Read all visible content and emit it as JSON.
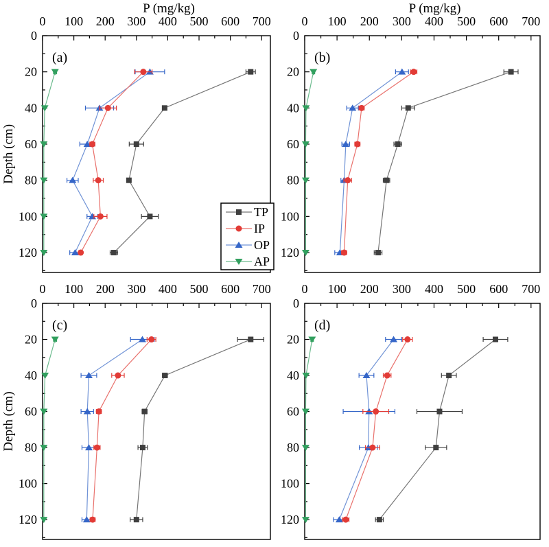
{
  "figure": {
    "x_axis_title": "P (mg/kg)",
    "y_axis_title": "Depth (cm)",
    "x_tick_labels": [
      "0",
      "100",
      "200",
      "300",
      "400",
      "500",
      "600",
      "700"
    ],
    "y_tick_labels": [
      "0",
      "20",
      "40",
      "60",
      "80",
      "100",
      "120"
    ]
  },
  "legend": {
    "items": [
      "TP",
      "IP",
      "OP",
      "AP"
    ]
  },
  "series_styles": {
    "TP": {
      "color": "#3f3f3f",
      "line_color": "#757575",
      "marker": "square"
    },
    "IP": {
      "color": "#e23b36",
      "line_color": "#e9716c",
      "marker": "circle"
    },
    "OP": {
      "color": "#3566c8",
      "line_color": "#7093d6",
      "marker": "triangle-up"
    },
    "AP": {
      "color": "#32a05f",
      "line_color": "#6cbb8e",
      "marker": "triangle-down"
    }
  },
  "chart_data": [
    {
      "id": "a",
      "panel_label": "(a)",
      "type": "line",
      "title": "P (mg/kg)",
      "xlabel": "P (mg/kg)",
      "ylabel": "Depth (cm)",
      "xlim": [
        0,
        728
      ],
      "ylim": [
        0,
        131
      ],
      "x_ticks": [
        0,
        100,
        200,
        300,
        400,
        500,
        600,
        700
      ],
      "y_ticks": [
        0,
        20,
        40,
        60,
        80,
        100,
        120
      ],
      "show_xlabel": true,
      "show_ylabel": true,
      "show_legend": true,
      "depths": [
        20,
        40,
        60,
        80,
        100,
        120
      ],
      "series": [
        {
          "name": "TP",
          "values": [
            665,
            390,
            300,
            276,
            343,
            228
          ],
          "err": [
            15,
            6,
            23,
            6,
            27,
            12
          ]
        },
        {
          "name": "IP",
          "values": [
            322,
            209,
            159,
            178,
            185,
            122
          ],
          "err": [
            28,
            27,
            8,
            16,
            21,
            6
          ]
        },
        {
          "name": "OP",
          "values": [
            343,
            182,
            143,
            96,
            159,
            104
          ],
          "err": [
            47,
            45,
            24,
            18,
            17,
            17
          ]
        },
        {
          "name": "AP",
          "values": [
            40,
            7,
            4,
            4,
            4,
            4
          ],
          "err": [
            5,
            2,
            1,
            1,
            1,
            1
          ]
        }
      ]
    },
    {
      "id": "b",
      "panel_label": "(b)",
      "type": "line",
      "title": "P (mg/kg)",
      "xlabel": "P (mg/kg)",
      "ylabel": "Depth (cm)",
      "xlim": [
        0,
        728
      ],
      "ylim": [
        0,
        131
      ],
      "x_ticks": [
        0,
        100,
        200,
        300,
        400,
        500,
        600,
        700
      ],
      "y_ticks": [
        0,
        20,
        40,
        60,
        80,
        100,
        120
      ],
      "show_xlabel": true,
      "show_ylabel": false,
      "show_legend": false,
      "depths": [
        20,
        40,
        60,
        80,
        120
      ],
      "series": [
        {
          "name": "TP",
          "values": [
            638,
            320,
            288,
            253,
            227
          ],
          "err": [
            22,
            20,
            12,
            10,
            12
          ]
        },
        {
          "name": "IP",
          "values": [
            337,
            176,
            163,
            133,
            122
          ],
          "err": [
            10,
            8,
            8,
            12,
            8
          ]
        },
        {
          "name": "OP",
          "values": [
            301,
            148,
            127,
            122,
            109
          ],
          "err": [
            20,
            18,
            12,
            10,
            16
          ]
        },
        {
          "name": "AP",
          "values": [
            27,
            4,
            3,
            3,
            3
          ],
          "err": [
            4,
            1,
            1,
            1,
            1
          ]
        }
      ]
    },
    {
      "id": "c",
      "panel_label": "(c)",
      "type": "line",
      "title": "",
      "xlabel": "P (mg/kg)",
      "ylabel": "Depth (cm)",
      "xlim": [
        0,
        728
      ],
      "ylim": [
        0,
        131
      ],
      "x_ticks": [
        0,
        100,
        200,
        300,
        400,
        500,
        600,
        700
      ],
      "y_ticks": [
        0,
        20,
        40,
        60,
        80,
        100,
        120
      ],
      "show_xlabel": false,
      "show_ylabel": true,
      "show_legend": false,
      "depths": [
        20,
        40,
        60,
        80,
        120
      ],
      "series": [
        {
          "name": "TP",
          "values": [
            665,
            391,
            326,
            320,
            300
          ],
          "err": [
            42,
            8,
            8,
            15,
            20
          ]
        },
        {
          "name": "IP",
          "values": [
            348,
            241,
            180,
            174,
            160
          ],
          "err": [
            14,
            20,
            8,
            10,
            8
          ]
        },
        {
          "name": "OP",
          "values": [
            319,
            148,
            143,
            148,
            141
          ],
          "err": [
            38,
            25,
            20,
            22,
            15
          ]
        },
        {
          "name": "AP",
          "values": [
            40,
            8,
            4,
            4,
            4
          ],
          "err": [
            5,
            2,
            1,
            1,
            1
          ]
        }
      ]
    },
    {
      "id": "d",
      "panel_label": "(d)",
      "type": "line",
      "title": "",
      "xlabel": "P (mg/kg)",
      "ylabel": "Depth (cm)",
      "xlim": [
        0,
        728
      ],
      "ylim": [
        0,
        131
      ],
      "x_ticks": [
        0,
        100,
        200,
        300,
        400,
        500,
        600,
        700
      ],
      "y_ticks": [
        0,
        20,
        40,
        60,
        80,
        100,
        120
      ],
      "show_xlabel": false,
      "show_ylabel": false,
      "show_legend": false,
      "depths": [
        20,
        40,
        60,
        80,
        120
      ],
      "series": [
        {
          "name": "TP",
          "values": [
            590,
            446,
            417,
            406,
            231
          ],
          "err": [
            38,
            23,
            70,
            33,
            12
          ]
        },
        {
          "name": "IP",
          "values": [
            318,
            255,
            220,
            210,
            127
          ],
          "err": [
            15,
            12,
            40,
            22,
            10
          ]
        },
        {
          "name": "OP",
          "values": [
            275,
            191,
            199,
            197,
            107
          ],
          "err": [
            25,
            23,
            80,
            28,
            18
          ]
        },
        {
          "name": "AP",
          "values": [
            23,
            4,
            3,
            3,
            3
          ],
          "err": [
            4,
            1,
            1,
            1,
            1
          ]
        }
      ]
    }
  ]
}
